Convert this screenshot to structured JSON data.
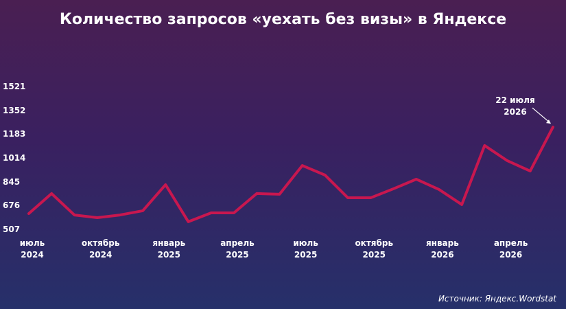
{
  "chart_data": {
    "type": "line",
    "title": "Количество запросов «уехать без визы» в Яндексе",
    "annotation": "22 июля\n2026",
    "source": "Источник: Яндекс.Wordstat",
    "categories": [
      "июль\n2024",
      null,
      null,
      "октябрь\n2024",
      null,
      null,
      "январь\n2025",
      null,
      null,
      "апрель\n2025",
      null,
      null,
      "июль\n2025",
      null,
      null,
      "октябрь\n2025",
      null,
      null,
      "январь\n2026",
      null,
      null,
      "апрель\n2026",
      null,
      null
    ],
    "series": [
      {
        "color": "#c8174f",
        "values": [
          619,
          761,
          609,
          590,
          609,
          639,
          824,
          561,
          624,
          624,
          761,
          756,
          960,
          892,
          731,
          731,
          795,
          863,
          790,
          683,
          1102,
          994,
          921,
          1233
        ]
      }
    ],
    "ylim": [
      507,
      1521
    ],
    "yticks": [
      507,
      676,
      845,
      1014,
      1183,
      1352,
      1521
    ],
    "grid": false
  }
}
